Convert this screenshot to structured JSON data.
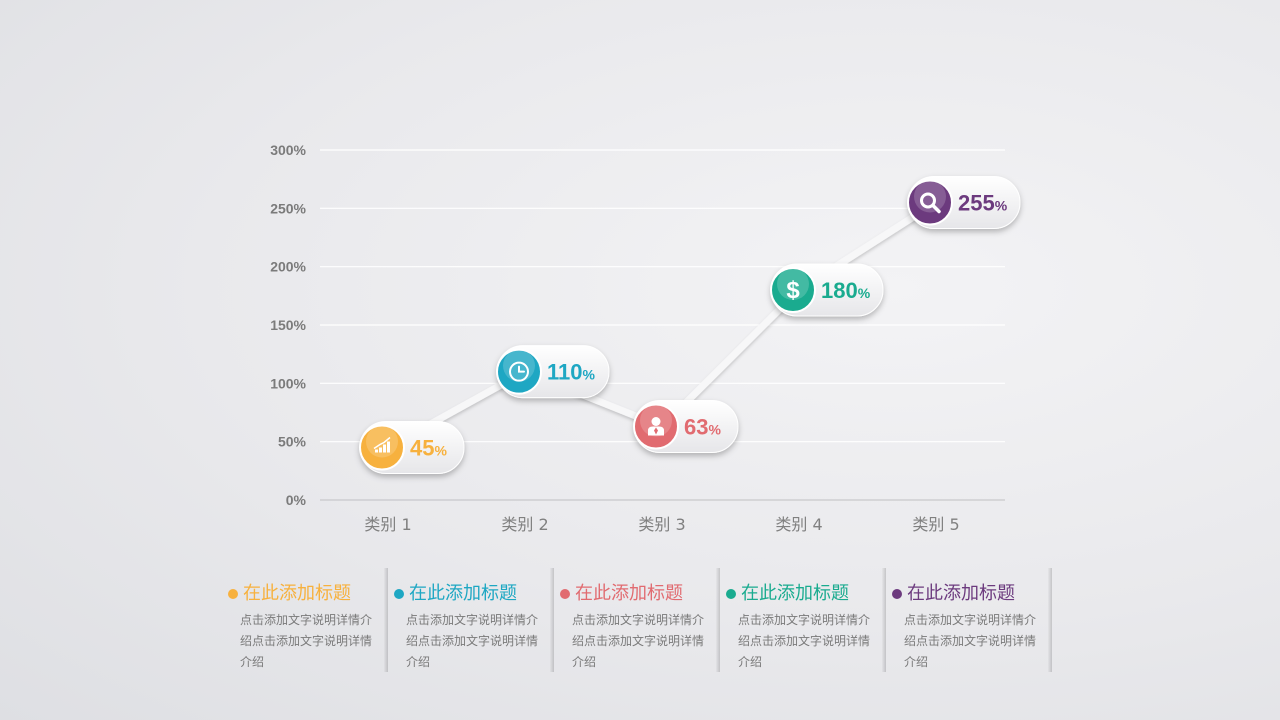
{
  "chart_data": {
    "type": "line",
    "categories": [
      "类别 1",
      "类别 2",
      "类别 3",
      "类别 4",
      "类别 5"
    ],
    "series": [
      {
        "values": [
          45,
          110,
          63,
          180,
          255
        ]
      }
    ],
    "value_labels": [
      "45",
      "110",
      "63",
      "180",
      "255"
    ],
    "unit": "%",
    "ylim": [
      0,
      300
    ],
    "yticks": [
      "0%",
      "50%",
      "100%",
      "150%",
      "200%",
      "250%",
      "300%"
    ],
    "grid": true,
    "point_icons": [
      "bar-chart-icon",
      "clock-icon",
      "person-icon",
      "dollar-icon",
      "search-icon"
    ],
    "point_colors": [
      "#f7b13e",
      "#1ea7c3",
      "#e16b70",
      "#1aab8f",
      "#6c3a7e"
    ]
  },
  "legend": [
    {
      "title": "在此添加标题",
      "desc": "点击添加文字说明详情介绍点击添加文字说明详情介绍",
      "color": "#f7b13e"
    },
    {
      "title": "在此添加标题",
      "desc": "点击添加文字说明详情介绍点击添加文字说明详情介绍",
      "color": "#1ea7c3"
    },
    {
      "title": "在此添加标题",
      "desc": "点击添加文字说明详情介绍点击添加文字说明详情介绍",
      "color": "#e16b70"
    },
    {
      "title": "在此添加标题",
      "desc": "点击添加文字说明详情介绍点击添加文字说明详情介绍",
      "color": "#1aab8f"
    },
    {
      "title": "在此添加标题",
      "desc": "点击添加文字说明详情介绍点击添加文字说明详情介绍",
      "color": "#6c3a7e"
    }
  ]
}
